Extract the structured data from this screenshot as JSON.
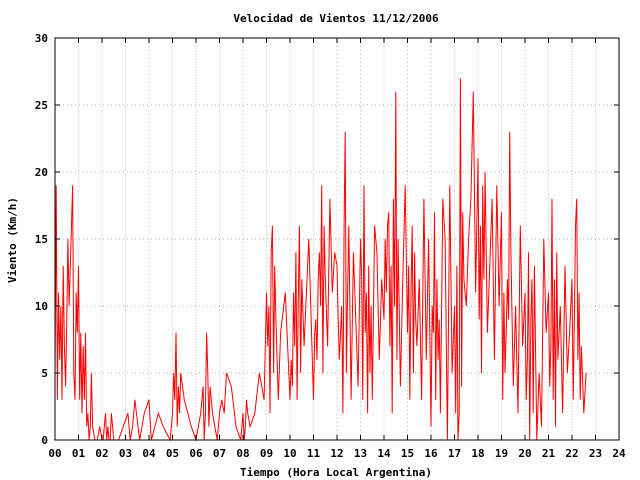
{
  "chart_data": {
    "type": "line",
    "title": "Velocidad de Vientos 11/12/2006",
    "xlabel": "Tiempo (Hora Local Argentina)",
    "ylabel": "Viento (Km/h)",
    "xlim": [
      0,
      24
    ],
    "ylim": [
      0,
      30
    ],
    "x_ticks": [
      0,
      1,
      2,
      3,
      4,
      5,
      6,
      7,
      8,
      9,
      10,
      11,
      12,
      13,
      14,
      15,
      16,
      17,
      18,
      19,
      20,
      21,
      22,
      23,
      24
    ],
    "x_tick_labels": [
      "00",
      "01",
      "02",
      "03",
      "04",
      "05",
      "06",
      "07",
      "08",
      "09",
      "10",
      "11",
      "12",
      "13",
      "14",
      "15",
      "16",
      "17",
      "18",
      "19",
      "20",
      "21",
      "22",
      "23",
      "24"
    ],
    "y_ticks": [
      0,
      5,
      10,
      15,
      20,
      25,
      30
    ],
    "y_tick_labels": [
      "0",
      "5",
      "10",
      "15",
      "20",
      "25",
      "30"
    ],
    "grid": true,
    "series": [
      {
        "color": "#ff0000",
        "x": [
          0.0,
          0.05,
          0.1,
          0.15,
          0.2,
          0.25,
          0.3,
          0.35,
          0.4,
          0.45,
          0.5,
          0.55,
          0.6,
          0.65,
          0.7,
          0.75,
          0.8,
          0.85,
          0.9,
          0.95,
          1.0,
          1.05,
          1.1,
          1.15,
          1.2,
          1.25,
          1.3,
          1.35,
          1.4,
          1.45,
          1.5,
          1.55,
          1.6,
          1.7,
          1.8,
          1.9,
          2.0,
          2.05,
          2.1,
          2.15,
          2.2,
          2.25,
          2.3,
          2.35,
          2.4,
          2.5,
          2.7,
          2.9,
          3.1,
          3.2,
          3.3,
          3.4,
          3.6,
          3.8,
          4.0,
          4.1,
          4.4,
          4.6,
          4.9,
          5.0,
          5.05,
          5.1,
          5.15,
          5.2,
          5.25,
          5.3,
          5.35,
          5.5,
          5.8,
          6.0,
          6.2,
          6.3,
          6.35,
          6.4,
          6.45,
          6.5,
          6.55,
          6.6,
          6.7,
          6.9,
          7.0,
          7.1,
          7.2,
          7.3,
          7.5,
          7.7,
          7.9,
          8.0,
          8.05,
          8.1,
          8.15,
          8.2,
          8.3,
          8.5,
          8.7,
          8.9,
          9.0,
          9.05,
          9.1,
          9.15,
          9.2,
          9.25,
          9.3,
          9.35,
          9.4,
          9.5,
          9.6,
          9.8,
          10.0,
          10.05,
          10.1,
          10.15,
          10.2,
          10.25,
          10.3,
          10.35,
          10.4,
          10.45,
          10.5,
          10.6,
          10.7,
          10.8,
          11.0,
          11.05,
          11.1,
          11.15,
          11.2,
          11.25,
          11.3,
          11.35,
          11.4,
          11.45,
          11.5,
          11.6,
          11.7,
          11.8,
          11.9,
          12.0,
          12.05,
          12.1,
          12.15,
          12.2,
          12.25,
          12.3,
          12.35,
          12.4,
          12.45,
          12.5,
          12.6,
          12.7,
          12.8,
          12.9,
          13.0,
          13.05,
          13.1,
          13.15,
          13.2,
          13.25,
          13.3,
          13.35,
          13.4,
          13.45,
          13.5,
          13.6,
          13.7,
          13.8,
          13.9,
          14.0,
          14.05,
          14.1,
          14.15,
          14.2,
          14.25,
          14.3,
          14.35,
          14.4,
          14.45,
          14.5,
          14.55,
          14.6,
          14.7,
          14.8,
          14.9,
          15.0,
          15.05,
          15.1,
          15.15,
          15.2,
          15.25,
          15.3,
          15.35,
          15.4,
          15.5,
          15.6,
          15.7,
          15.8,
          15.9,
          16.0,
          16.05,
          16.1,
          16.15,
          16.2,
          16.25,
          16.3,
          16.35,
          16.4,
          16.5,
          16.6,
          16.7,
          16.8,
          16.9,
          17.0,
          17.05,
          17.1,
          17.15,
          17.2,
          17.25,
          17.3,
          17.35,
          17.4,
          17.5,
          17.6,
          17.7,
          17.8,
          17.9,
          18.0,
          18.05,
          18.1,
          18.15,
          18.2,
          18.25,
          18.3,
          18.35,
          18.4,
          18.5,
          18.6,
          18.7,
          18.8,
          18.9,
          19.0,
          19.05,
          19.1,
          19.15,
          19.2,
          19.25,
          19.3,
          19.35,
          19.4,
          19.5,
          19.6,
          19.7,
          19.8,
          19.9,
          20.0,
          20.05,
          20.1,
          20.15,
          20.2,
          20.25,
          20.3,
          20.35,
          20.4,
          20.5,
          20.6,
          20.7,
          20.8,
          20.9,
          21.0,
          21.05,
          21.1,
          21.15,
          21.2,
          21.25,
          21.3,
          21.35,
          21.4,
          21.5,
          21.6,
          21.7,
          21.8,
          21.9,
          22.0,
          22.05,
          22.1,
          22.15,
          22.2,
          22.25,
          22.3,
          22.35,
          22.4,
          22.5,
          22.6
        ],
        "y": [
          5,
          19,
          3,
          11,
          6,
          10,
          3,
          13,
          7,
          4,
          9,
          15,
          10,
          13,
          16,
          19,
          5,
          3,
          11,
          8,
          13,
          3,
          8,
          2,
          7,
          3,
          8,
          1,
          2,
          0,
          1,
          5,
          1,
          0,
          0,
          1,
          0,
          0,
          1,
          2,
          0,
          1,
          0,
          0,
          2,
          0,
          0,
          1,
          2,
          0,
          1,
          3,
          0,
          2,
          3,
          0,
          2,
          1,
          0,
          2,
          5,
          3,
          8,
          1,
          4,
          2,
          5,
          3,
          1,
          0,
          2,
          4,
          0,
          2,
          8,
          5,
          1,
          4,
          2,
          0,
          2,
          3,
          2,
          5,
          4,
          1,
          0,
          2,
          0,
          1,
          3,
          2,
          1,
          2,
          5,
          3,
          11,
          7,
          10,
          2,
          14,
          16,
          5,
          13,
          9,
          3,
          8,
          11,
          3,
          6,
          4,
          11,
          7,
          14,
          3,
          10,
          16,
          5,
          12,
          7,
          11,
          15,
          3,
          8,
          9,
          6,
          12,
          14,
          10,
          19,
          5,
          16,
          12,
          7,
          18,
          11,
          14,
          13,
          9,
          6,
          8,
          10,
          2,
          16,
          23,
          5,
          11,
          16,
          3,
          14,
          9,
          4,
          15,
          12,
          3,
          19,
          8,
          11,
          2,
          13,
          5,
          10,
          3,
          16,
          14,
          6,
          12,
          9,
          15,
          11,
          16,
          17,
          7,
          13,
          2,
          18,
          10,
          26,
          6,
          15,
          4,
          12,
          19,
          8,
          13,
          3,
          11,
          16,
          5,
          14,
          9,
          7,
          12,
          3,
          18,
          6,
          15,
          1,
          10,
          8,
          17,
          3,
          12,
          6,
          9,
          2,
          18,
          15,
          0,
          19,
          5,
          10,
          2,
          13,
          0,
          2,
          27,
          4,
          17,
          12,
          10,
          15,
          18,
          26,
          11,
          21,
          9,
          16,
          5,
          19,
          12,
          20,
          14,
          8,
          13,
          18,
          6,
          19,
          10,
          17,
          3,
          11,
          5,
          8,
          12,
          9,
          23,
          14,
          4,
          10,
          2,
          16,
          7,
          11,
          3,
          6,
          14,
          0,
          9,
          12,
          2,
          13,
          0,
          5,
          1,
          15,
          8,
          11,
          4,
          7,
          18,
          3,
          12,
          1,
          14,
          6,
          10,
          2,
          13,
          5,
          8,
          12,
          3,
          9,
          16,
          18,
          6,
          11,
          3,
          7,
          2,
          5
        ]
      }
    ]
  }
}
